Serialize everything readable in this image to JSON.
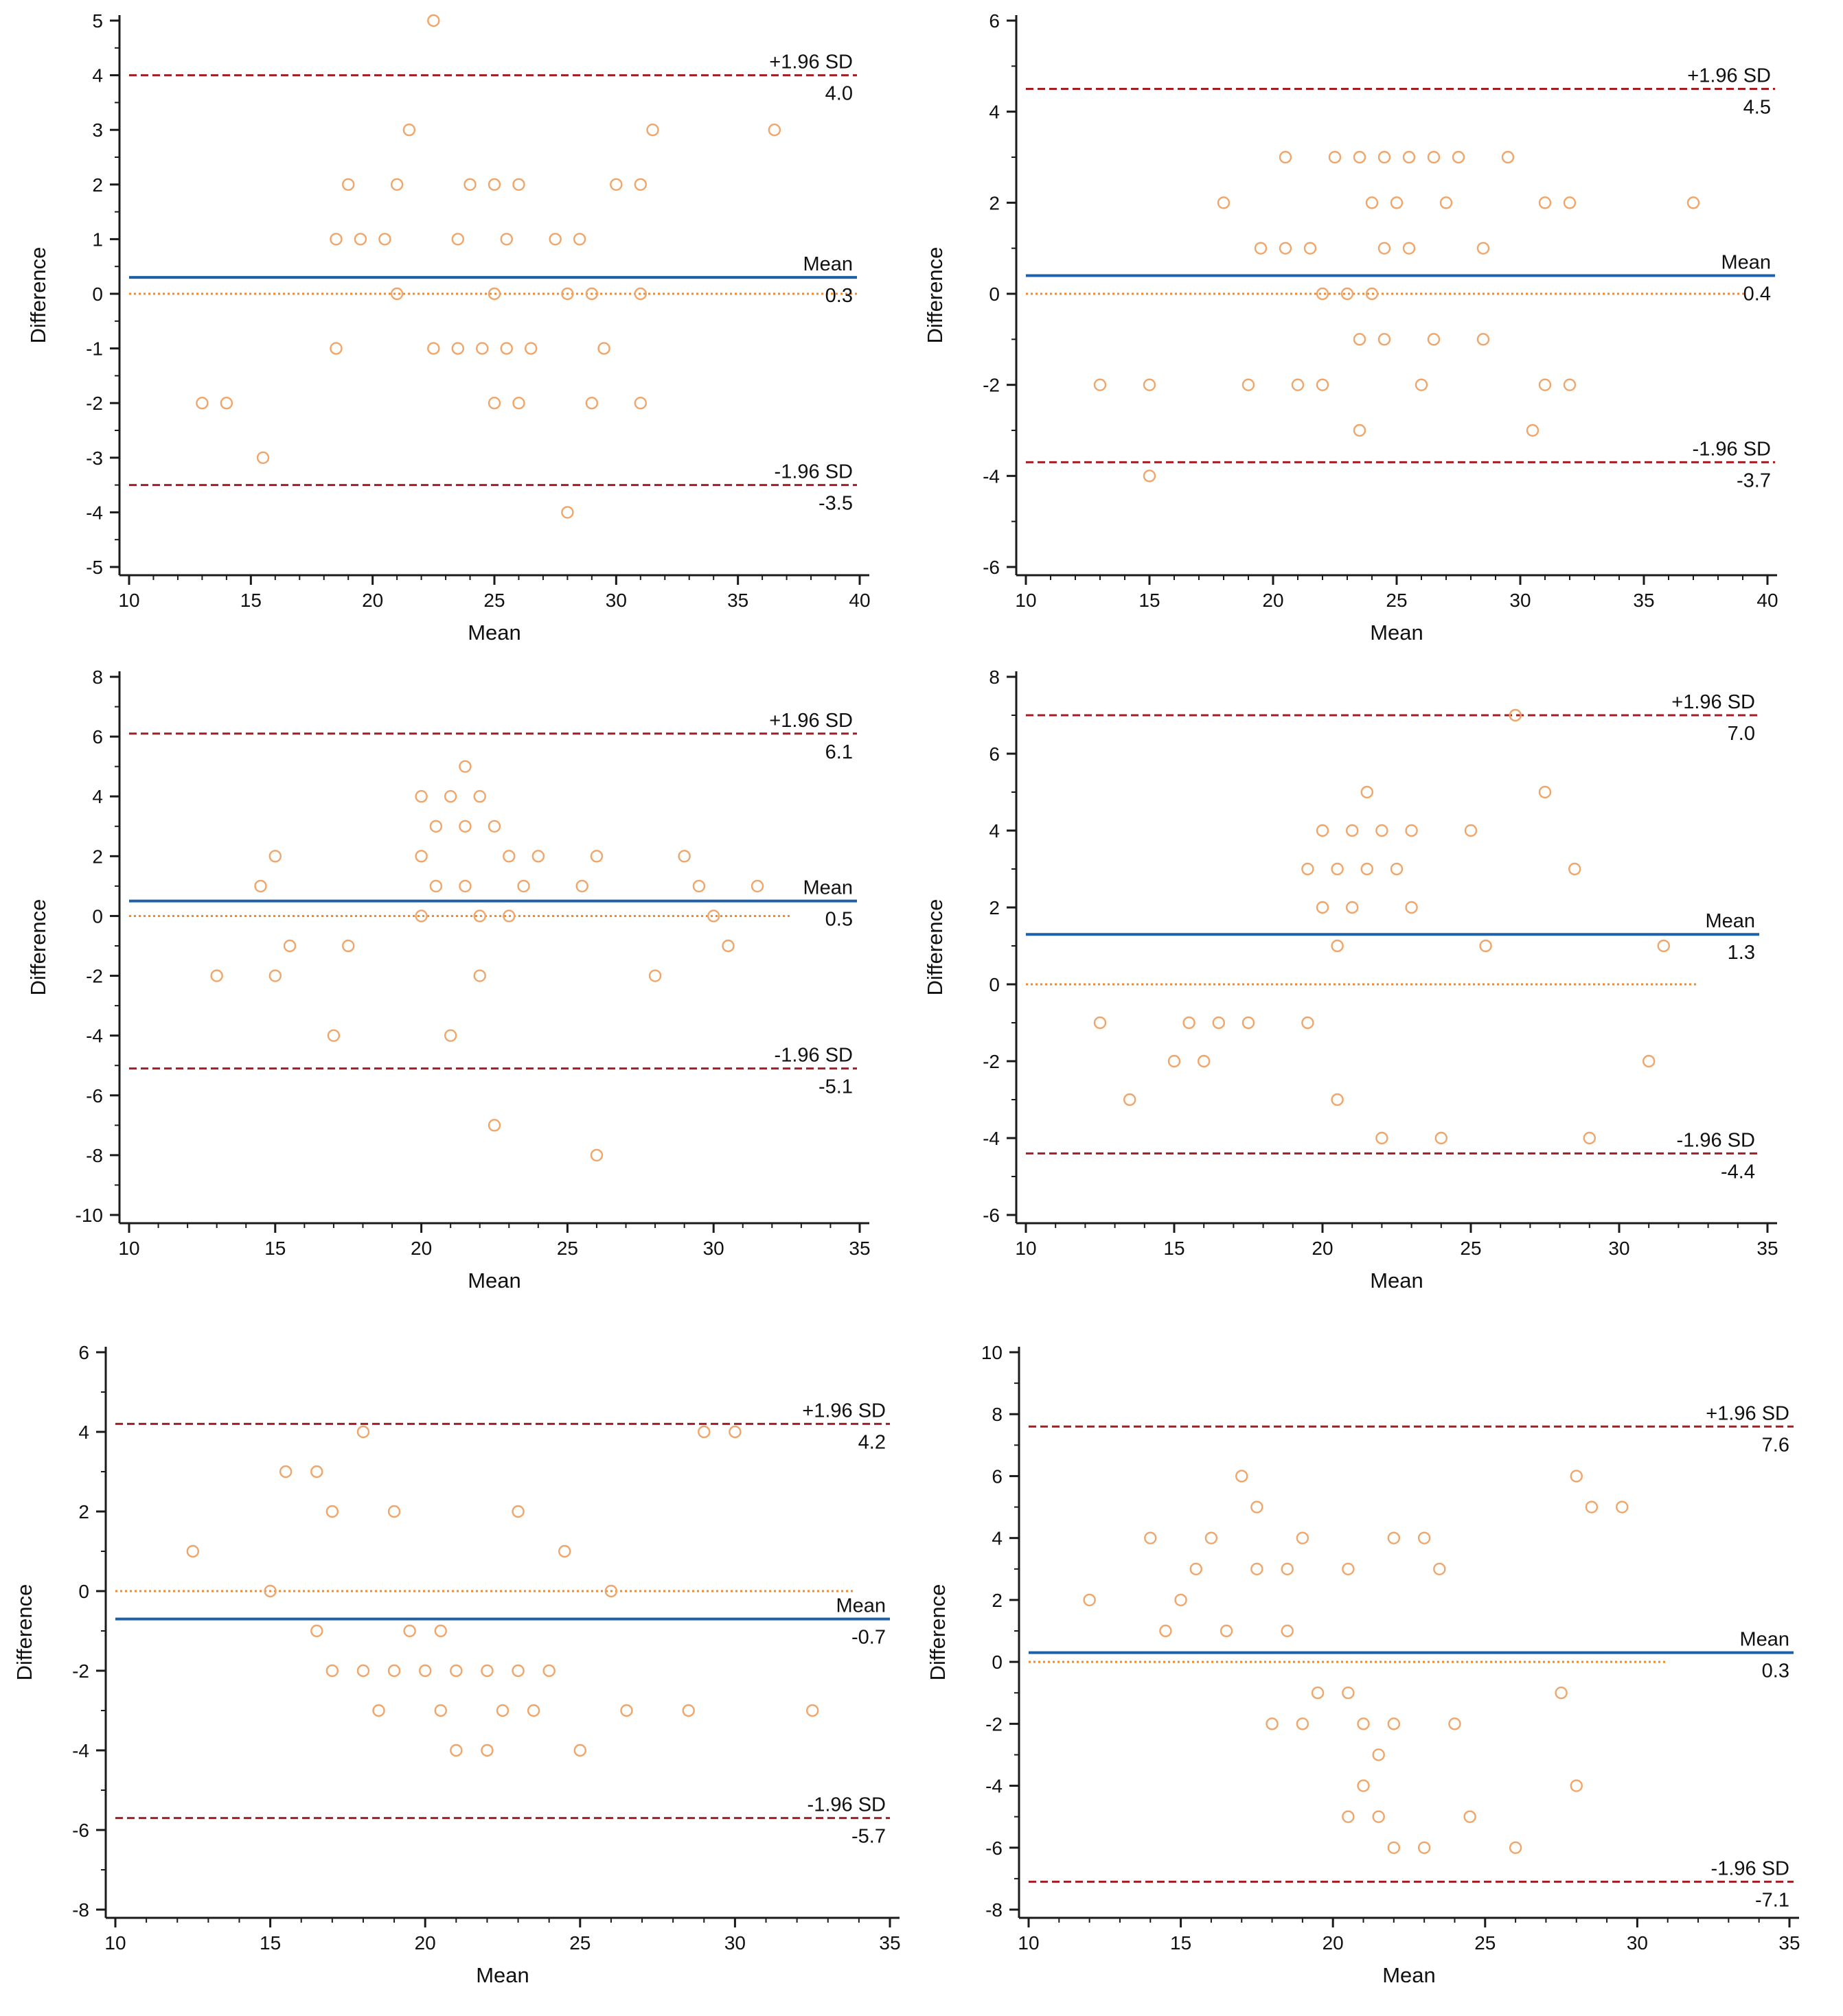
{
  "colors": {
    "background": "#ffffff",
    "axis": "#1a1a1a",
    "mean_line": "#1f5fa8",
    "limit_line": "#a51d23",
    "zero_line": "#f08a2c",
    "points": "#f0a56a"
  },
  "chart_data": [
    {
      "type": "scatter",
      "panel": "top-left",
      "xlabel": "Mean",
      "ylabel": "Difference",
      "xlim": [
        10,
        40
      ],
      "ylim": [
        -5,
        5
      ],
      "xticks": [
        10,
        15,
        20,
        25,
        30,
        35,
        40
      ],
      "yticks": [
        -5,
        -4,
        -3,
        -2,
        -1,
        0,
        1,
        2,
        3,
        4,
        5
      ],
      "mean_label": "Mean",
      "mean_value": 0.3,
      "mean_text": "0.3",
      "upper_label": "+1.96 SD",
      "upper_value": 4.0,
      "upper_text": "4.0",
      "lower_label": "-1.96 SD",
      "lower_value": -3.5,
      "lower_text": "-3.5",
      "points": [
        [
          13,
          -2
        ],
        [
          14,
          -2
        ],
        [
          15.5,
          -3
        ],
        [
          18.5,
          1
        ],
        [
          18.5,
          -1
        ],
        [
          19,
          2
        ],
        [
          19.5,
          1
        ],
        [
          20.5,
          1
        ],
        [
          21,
          2
        ],
        [
          21,
          0
        ],
        [
          21.5,
          3
        ],
        [
          22.5,
          5
        ],
        [
          22.5,
          -1
        ],
        [
          23.5,
          1
        ],
        [
          23.5,
          -1
        ],
        [
          24,
          2
        ],
        [
          24.5,
          -1
        ],
        [
          25,
          2
        ],
        [
          25,
          0
        ],
        [
          25,
          -2
        ],
        [
          25.5,
          1
        ],
        [
          25.5,
          -1
        ],
        [
          26,
          2
        ],
        [
          26,
          -2
        ],
        [
          26.5,
          -1
        ],
        [
          27.5,
          1
        ],
        [
          28,
          0
        ],
        [
          28,
          -4
        ],
        [
          28.5,
          1
        ],
        [
          29,
          0
        ],
        [
          29,
          -2
        ],
        [
          29.5,
          -1
        ],
        [
          30,
          2
        ],
        [
          31,
          2
        ],
        [
          31,
          0
        ],
        [
          31,
          -2
        ],
        [
          31.5,
          3
        ],
        [
          36.5,
          3
        ]
      ]
    },
    {
      "type": "scatter",
      "panel": "top-right",
      "xlabel": "Mean",
      "ylabel": "Difference",
      "xlim": [
        10,
        40
      ],
      "ylim": [
        -6,
        6
      ],
      "xticks": [
        10,
        15,
        20,
        25,
        30,
        35,
        40
      ],
      "yticks": [
        -6,
        -4,
        -2,
        0,
        2,
        4,
        6
      ],
      "mean_label": "Mean",
      "mean_value": 0.4,
      "mean_text": "0.4",
      "upper_label": "+1.96 SD",
      "upper_value": 4.5,
      "upper_text": "4.5",
      "lower_label": "-1.96 SD",
      "lower_value": -3.7,
      "lower_text": "-3.7",
      "points": [
        [
          13,
          -2
        ],
        [
          15,
          -2
        ],
        [
          15,
          -4
        ],
        [
          18,
          2
        ],
        [
          19,
          -2
        ],
        [
          19.5,
          1
        ],
        [
          20.5,
          3
        ],
        [
          20.5,
          1
        ],
        [
          21,
          -2
        ],
        [
          21.5,
          1
        ],
        [
          22,
          0
        ],
        [
          22,
          -2
        ],
        [
          22.5,
          3
        ],
        [
          23,
          0
        ],
        [
          23.5,
          3
        ],
        [
          23.5,
          -1
        ],
        [
          23.5,
          -3
        ],
        [
          24,
          2
        ],
        [
          24,
          0
        ],
        [
          24.5,
          3
        ],
        [
          24.5,
          1
        ],
        [
          24.5,
          -1
        ],
        [
          25,
          2
        ],
        [
          25.5,
          3
        ],
        [
          25.5,
          1
        ],
        [
          26,
          -2
        ],
        [
          26.5,
          3
        ],
        [
          26.5,
          -1
        ],
        [
          27,
          2
        ],
        [
          27.5,
          3
        ],
        [
          28.5,
          1
        ],
        [
          28.5,
          -1
        ],
        [
          29.5,
          3
        ],
        [
          30.5,
          -3
        ],
        [
          31,
          2
        ],
        [
          31,
          -2
        ],
        [
          32,
          2
        ],
        [
          32,
          -2
        ],
        [
          37,
          2
        ]
      ]
    },
    {
      "type": "scatter",
      "panel": "middle-left",
      "xlabel": "Mean",
      "ylabel": "Difference",
      "xlim": [
        10,
        35
      ],
      "ylim": [
        -10,
        8
      ],
      "xticks": [
        10,
        15,
        20,
        25,
        30,
        35
      ],
      "yticks": [
        -10,
        -8,
        -6,
        -4,
        -2,
        0,
        2,
        4,
        6,
        8
      ],
      "mean_label": "Mean",
      "mean_value": 0.5,
      "mean_text": "0.5",
      "upper_label": "+1.96 SD",
      "upper_value": 6.1,
      "upper_text": "6.1",
      "lower_label": "-1.96 SD",
      "lower_value": -5.1,
      "lower_text": "-5.1",
      "points": [
        [
          13,
          -2
        ],
        [
          14.5,
          1
        ],
        [
          15,
          2
        ],
        [
          15,
          -2
        ],
        [
          15.5,
          -1
        ],
        [
          17,
          -4
        ],
        [
          17.5,
          -1
        ],
        [
          20,
          4
        ],
        [
          20,
          2
        ],
        [
          20,
          0
        ],
        [
          20.5,
          3
        ],
        [
          20.5,
          1
        ],
        [
          21,
          4
        ],
        [
          21,
          -4
        ],
        [
          21.5,
          5
        ],
        [
          21.5,
          3
        ],
        [
          21.5,
          1
        ],
        [
          22,
          4
        ],
        [
          22,
          0
        ],
        [
          22,
          -2
        ],
        [
          22.5,
          3
        ],
        [
          22.5,
          -7
        ],
        [
          23,
          2
        ],
        [
          23,
          0
        ],
        [
          23.5,
          1
        ],
        [
          24,
          2
        ],
        [
          25.5,
          1
        ],
        [
          26,
          2
        ],
        [
          26,
          -8
        ],
        [
          28,
          -2
        ],
        [
          29,
          2
        ],
        [
          29.5,
          1
        ],
        [
          30,
          0
        ],
        [
          30.5,
          -1
        ],
        [
          31.5,
          1
        ]
      ]
    },
    {
      "type": "scatter",
      "panel": "middle-right",
      "xlabel": "Mean",
      "ylabel": "Difference",
      "xlim": [
        10,
        35
      ],
      "ylim": [
        -6,
        8
      ],
      "xticks": [
        10,
        15,
        20,
        25,
        30,
        35
      ],
      "yticks": [
        -6,
        -4,
        -2,
        0,
        2,
        4,
        6,
        8
      ],
      "mean_label": "Mean",
      "mean_value": 1.3,
      "mean_text": "1.3",
      "upper_label": "+1.96 SD",
      "upper_value": 7.0,
      "upper_text": "7.0",
      "lower_label": "-1.96 SD",
      "lower_value": -4.4,
      "lower_text": "-4.4",
      "points": [
        [
          12.5,
          -1
        ],
        [
          13.5,
          -3
        ],
        [
          15,
          -2
        ],
        [
          15.5,
          -1
        ],
        [
          16,
          -2
        ],
        [
          16.5,
          -1
        ],
        [
          17.5,
          -1
        ],
        [
          19.5,
          3
        ],
        [
          19.5,
          -1
        ],
        [
          20,
          4
        ],
        [
          20,
          2
        ],
        [
          20.5,
          3
        ],
        [
          20.5,
          1
        ],
        [
          20.5,
          -3
        ],
        [
          21,
          4
        ],
        [
          21,
          2
        ],
        [
          21.5,
          5
        ],
        [
          21.5,
          3
        ],
        [
          22,
          4
        ],
        [
          22,
          -4
        ],
        [
          22.5,
          3
        ],
        [
          23,
          4
        ],
        [
          23,
          2
        ],
        [
          24,
          -4
        ],
        [
          25,
          4
        ],
        [
          25.5,
          1
        ],
        [
          26.5,
          7
        ],
        [
          27.5,
          5
        ],
        [
          28.5,
          3
        ],
        [
          29,
          -4
        ],
        [
          31,
          -2
        ],
        [
          31.5,
          1
        ]
      ]
    },
    {
      "type": "scatter",
      "panel": "bottom-left",
      "xlabel": "Mean",
      "ylabel": "Difference",
      "xlim": [
        10,
        35
      ],
      "ylim": [
        -8,
        6
      ],
      "xticks": [
        10,
        15,
        20,
        25,
        30,
        35
      ],
      "yticks": [
        -8,
        -6,
        -4,
        -2,
        0,
        2,
        4,
        6
      ],
      "mean_label": "Mean",
      "mean_value": -0.7,
      "mean_text": "-0.7",
      "upper_label": "+1.96 SD",
      "upper_value": 4.2,
      "upper_text": "4.2",
      "lower_label": "-1.96 SD",
      "lower_value": -5.7,
      "lower_text": "-5.7",
      "points": [
        [
          12.5,
          1
        ],
        [
          15,
          0
        ],
        [
          15.5,
          3
        ],
        [
          16.5,
          3
        ],
        [
          16.5,
          -1
        ],
        [
          17,
          2
        ],
        [
          17,
          -2
        ],
        [
          18,
          4
        ],
        [
          18,
          -2
        ],
        [
          18.5,
          -3
        ],
        [
          19,
          2
        ],
        [
          19,
          -2
        ],
        [
          19.5,
          -1
        ],
        [
          20,
          -2
        ],
        [
          20.5,
          -1
        ],
        [
          20.5,
          -3
        ],
        [
          21,
          -2
        ],
        [
          21,
          -4
        ],
        [
          22,
          -2
        ],
        [
          22,
          -4
        ],
        [
          22.5,
          -3
        ],
        [
          23,
          2
        ],
        [
          23,
          -2
        ],
        [
          23.5,
          -3
        ],
        [
          24,
          -2
        ],
        [
          24.5,
          1
        ],
        [
          25,
          -4
        ],
        [
          26,
          0
        ],
        [
          26.5,
          -3
        ],
        [
          28.5,
          -3
        ],
        [
          29,
          4
        ],
        [
          30,
          4
        ],
        [
          32.5,
          -3
        ]
      ]
    },
    {
      "type": "scatter",
      "panel": "bottom-right",
      "xlabel": "Mean",
      "ylabel": "Difference",
      "xlim": [
        10,
        35
      ],
      "ylim": [
        -8,
        10
      ],
      "xticks": [
        10,
        15,
        20,
        25,
        30,
        35
      ],
      "yticks": [
        -8,
        -6,
        -4,
        -2,
        0,
        2,
        4,
        6,
        8,
        10
      ],
      "mean_label": "Mean",
      "mean_value": 0.3,
      "mean_text": "0.3",
      "upper_label": "+1.96 SD",
      "upper_value": 7.6,
      "upper_text": "7.6",
      "lower_label": "-1.96 SD",
      "lower_value": -7.1,
      "lower_text": "-7.1",
      "points": [
        [
          12,
          2
        ],
        [
          14,
          4
        ],
        [
          14.5,
          1
        ],
        [
          15,
          2
        ],
        [
          15.5,
          3
        ],
        [
          16,
          4
        ],
        [
          16.5,
          1
        ],
        [
          17,
          6
        ],
        [
          17.5,
          5
        ],
        [
          17.5,
          3
        ],
        [
          18,
          -2
        ],
        [
          18.5,
          3
        ],
        [
          18.5,
          1
        ],
        [
          19,
          4
        ],
        [
          19,
          -2
        ],
        [
          19.5,
          -1
        ],
        [
          20.5,
          3
        ],
        [
          20.5,
          -1
        ],
        [
          20.5,
          -5
        ],
        [
          21,
          -2
        ],
        [
          21,
          -4
        ],
        [
          21.5,
          -3
        ],
        [
          21.5,
          -5
        ],
        [
          22,
          4
        ],
        [
          22,
          -2
        ],
        [
          22,
          -6
        ],
        [
          23,
          4
        ],
        [
          23,
          -6
        ],
        [
          23.5,
          3
        ],
        [
          24,
          -2
        ],
        [
          24.5,
          -5
        ],
        [
          26,
          -6
        ],
        [
          27.5,
          -1
        ],
        [
          28,
          6
        ],
        [
          28,
          -4
        ],
        [
          28.5,
          5
        ],
        [
          29.5,
          5
        ]
      ]
    }
  ]
}
